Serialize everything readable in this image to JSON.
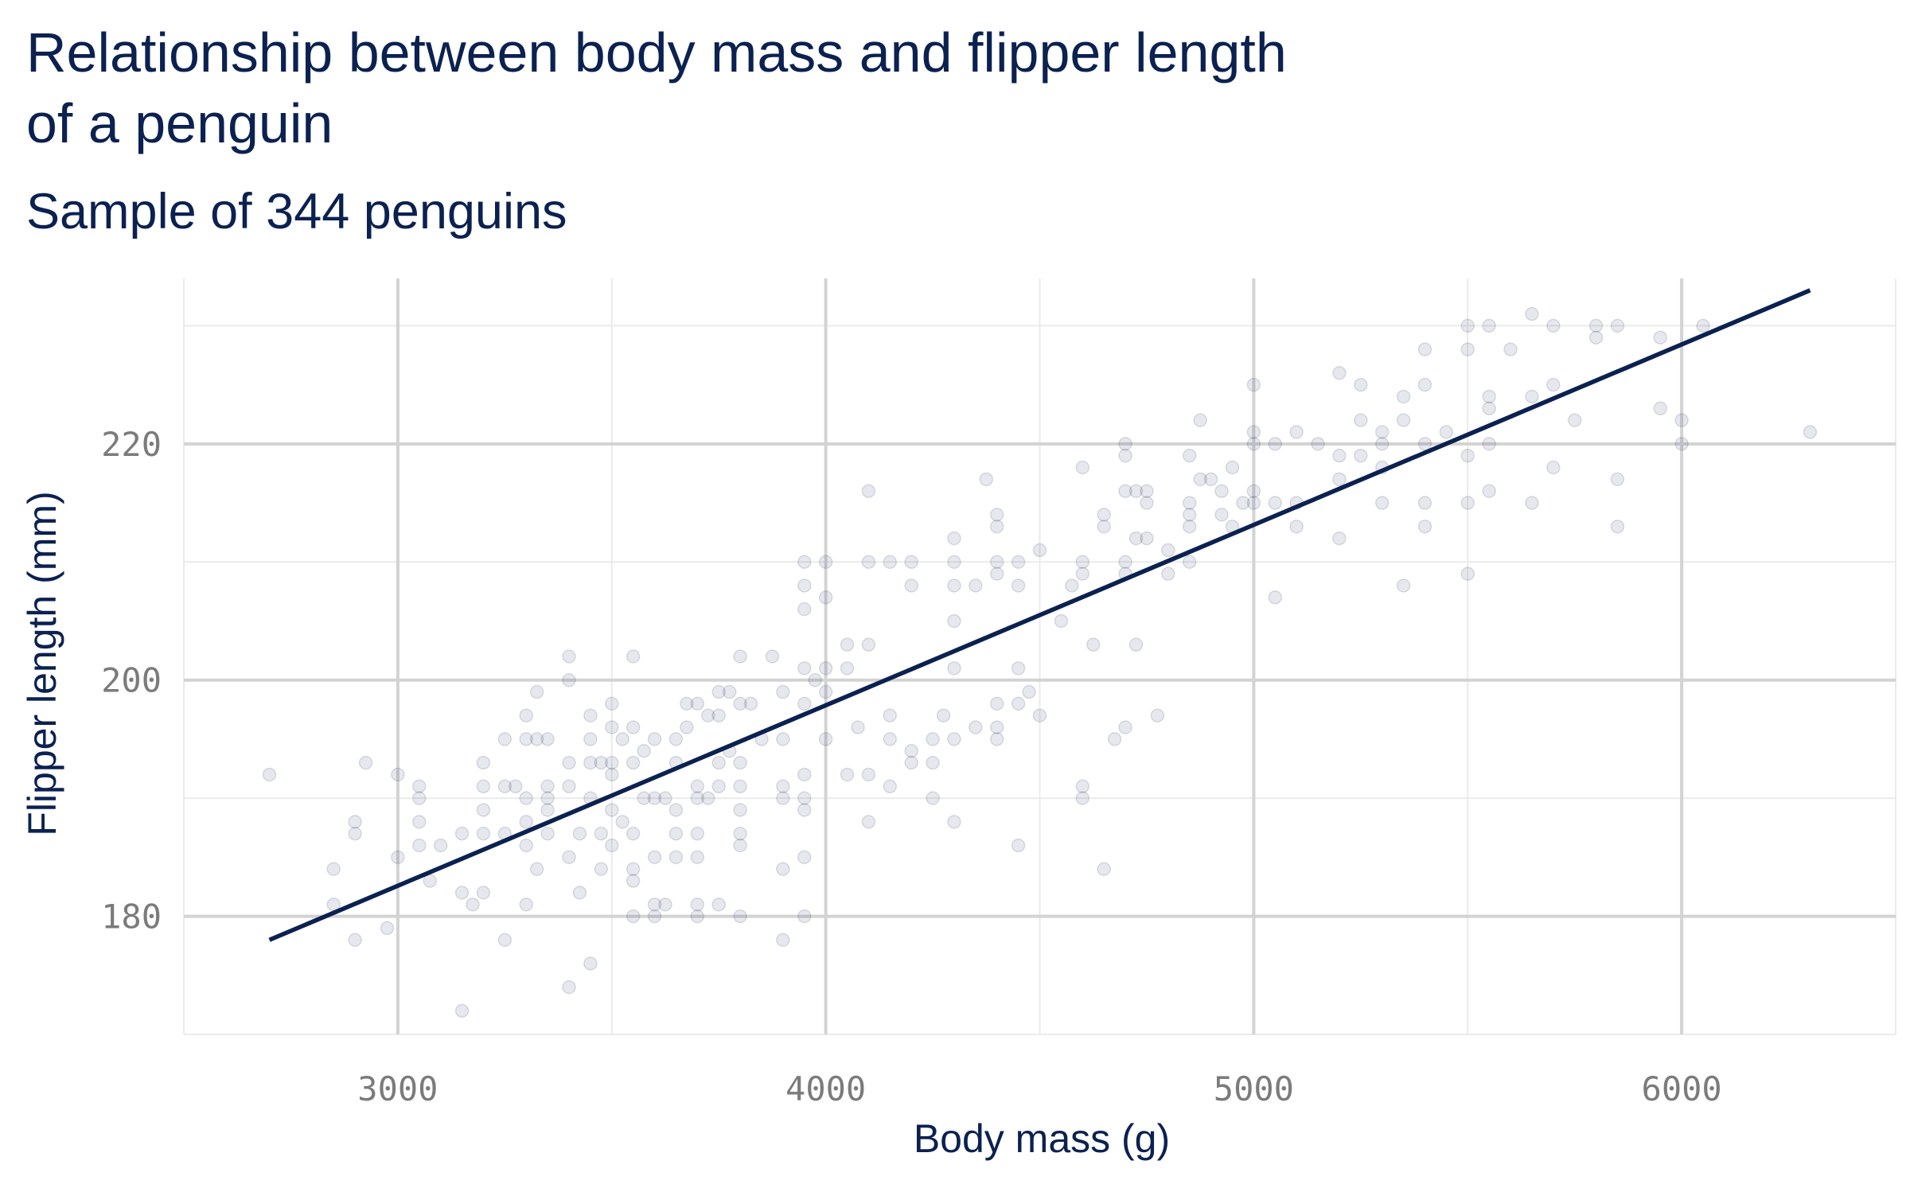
{
  "chart_data": {
    "type": "scatter",
    "title": "Relationship between body mass and flipper length of a penguin",
    "subtitle": "Sample of 344 penguins",
    "xlabel": "Body mass (g)",
    "ylabel": "Flipper length (mm)",
    "xlim": [
      2500,
      6500
    ],
    "ylim": [
      170,
      234
    ],
    "xticks": [
      3000,
      4000,
      5000,
      6000
    ],
    "yticks": [
      180,
      200,
      220
    ],
    "grid": true,
    "legend": "none",
    "colors": {
      "points": "#0b2150",
      "line": "#0b2150",
      "text": "#0b2150",
      "grid": "#d3d3d3",
      "tick_text": "#7b7b7b"
    },
    "trend_line": {
      "x": [
        2700,
        6300
      ],
      "y": [
        178,
        233
      ]
    },
    "points": [
      [
        2700,
        192
      ],
      [
        2850,
        184
      ],
      [
        2850,
        181
      ],
      [
        2900,
        178
      ],
      [
        2900,
        187
      ],
      [
        2900,
        188
      ],
      [
        2925,
        193
      ],
      [
        2975,
        179
      ],
      [
        3000,
        192
      ],
      [
        3000,
        185
      ],
      [
        3050,
        191
      ],
      [
        3050,
        190
      ],
      [
        3050,
        188
      ],
      [
        3050,
        186
      ],
      [
        3075,
        183
      ],
      [
        3100,
        186
      ],
      [
        3150,
        187
      ],
      [
        3150,
        182
      ],
      [
        3150,
        172
      ],
      [
        3175,
        181
      ],
      [
        3200,
        191
      ],
      [
        3200,
        189
      ],
      [
        3200,
        187
      ],
      [
        3200,
        193
      ],
      [
        3200,
        182
      ],
      [
        3250,
        195
      ],
      [
        3250,
        191
      ],
      [
        3250,
        187
      ],
      [
        3250,
        178
      ],
      [
        3275,
        191
      ],
      [
        3300,
        197
      ],
      [
        3300,
        195
      ],
      [
        3300,
        190
      ],
      [
        3300,
        188
      ],
      [
        3300,
        186
      ],
      [
        3300,
        181
      ],
      [
        3325,
        199
      ],
      [
        3325,
        195
      ],
      [
        3325,
        184
      ],
      [
        3350,
        190
      ],
      [
        3350,
        189
      ],
      [
        3350,
        187
      ],
      [
        3350,
        195
      ],
      [
        3350,
        191
      ],
      [
        3400,
        202
      ],
      [
        3400,
        200
      ],
      [
        3400,
        193
      ],
      [
        3400,
        191
      ],
      [
        3400,
        185
      ],
      [
        3400,
        174
      ],
      [
        3425,
        187
      ],
      [
        3425,
        182
      ],
      [
        3450,
        197
      ],
      [
        3450,
        195
      ],
      [
        3450,
        193
      ],
      [
        3450,
        190
      ],
      [
        3450,
        176
      ],
      [
        3475,
        187
      ],
      [
        3475,
        184
      ],
      [
        3475,
        193
      ],
      [
        3500,
        198
      ],
      [
        3500,
        196
      ],
      [
        3500,
        192
      ],
      [
        3500,
        189
      ],
      [
        3500,
        186
      ],
      [
        3500,
        193
      ],
      [
        3525,
        195
      ],
      [
        3525,
        188
      ],
      [
        3550,
        202
      ],
      [
        3550,
        196
      ],
      [
        3550,
        193
      ],
      [
        3550,
        187
      ],
      [
        3550,
        184
      ],
      [
        3550,
        183
      ],
      [
        3550,
        180
      ],
      [
        3575,
        194
      ],
      [
        3575,
        190
      ],
      [
        3600,
        195
      ],
      [
        3600,
        190
      ],
      [
        3600,
        185
      ],
      [
        3600,
        181
      ],
      [
        3600,
        180
      ],
      [
        3625,
        190
      ],
      [
        3625,
        181
      ],
      [
        3650,
        195
      ],
      [
        3650,
        193
      ],
      [
        3650,
        189
      ],
      [
        3650,
        187
      ],
      [
        3650,
        185
      ],
      [
        3675,
        198
      ],
      [
        3675,
        196
      ],
      [
        3700,
        198
      ],
      [
        3700,
        191
      ],
      [
        3700,
        190
      ],
      [
        3700,
        187
      ],
      [
        3700,
        185
      ],
      [
        3700,
        181
      ],
      [
        3700,
        180
      ],
      [
        3725,
        190
      ],
      [
        3725,
        197
      ],
      [
        3750,
        199
      ],
      [
        3750,
        197
      ],
      [
        3750,
        193
      ],
      [
        3750,
        191
      ],
      [
        3750,
        181
      ],
      [
        3775,
        199
      ],
      [
        3775,
        194
      ],
      [
        3800,
        202
      ],
      [
        3800,
        198
      ],
      [
        3800,
        193
      ],
      [
        3800,
        191
      ],
      [
        3800,
        189
      ],
      [
        3800,
        187
      ],
      [
        3800,
        186
      ],
      [
        3800,
        180
      ],
      [
        3825,
        198
      ],
      [
        3850,
        195
      ],
      [
        3875,
        202
      ],
      [
        3900,
        199
      ],
      [
        3900,
        195
      ],
      [
        3900,
        191
      ],
      [
        3900,
        190
      ],
      [
        3900,
        184
      ],
      [
        3900,
        178
      ],
      [
        3950,
        210
      ],
      [
        3950,
        208
      ],
      [
        3950,
        206
      ],
      [
        3950,
        201
      ],
      [
        3950,
        198
      ],
      [
        3950,
        192
      ],
      [
        3950,
        190
      ],
      [
        3950,
        189
      ],
      [
        3950,
        185
      ],
      [
        3950,
        180
      ],
      [
        3975,
        200
      ],
      [
        4000,
        210
      ],
      [
        4000,
        207
      ],
      [
        4000,
        201
      ],
      [
        4000,
        199
      ],
      [
        4000,
        195
      ],
      [
        4050,
        203
      ],
      [
        4050,
        201
      ],
      [
        4050,
        192
      ],
      [
        4075,
        196
      ],
      [
        4100,
        216
      ],
      [
        4100,
        210
      ],
      [
        4100,
        203
      ],
      [
        4100,
        192
      ],
      [
        4100,
        188
      ],
      [
        4150,
        210
      ],
      [
        4150,
        197
      ],
      [
        4150,
        195
      ],
      [
        4150,
        191
      ],
      [
        4200,
        210
      ],
      [
        4200,
        208
      ],
      [
        4200,
        194
      ],
      [
        4200,
        193
      ],
      [
        4250,
        190
      ],
      [
        4250,
        193
      ],
      [
        4250,
        195
      ],
      [
        4275,
        197
      ],
      [
        4300,
        212
      ],
      [
        4300,
        210
      ],
      [
        4300,
        208
      ],
      [
        4300,
        205
      ],
      [
        4300,
        201
      ],
      [
        4300,
        195
      ],
      [
        4300,
        188
      ],
      [
        4350,
        208
      ],
      [
        4350,
        196
      ],
      [
        4375,
        217
      ],
      [
        4400,
        214
      ],
      [
        4400,
        213
      ],
      [
        4400,
        210
      ],
      [
        4400,
        209
      ],
      [
        4400,
        198
      ],
      [
        4400,
        196
      ],
      [
        4400,
        195
      ],
      [
        4450,
        210
      ],
      [
        4450,
        208
      ],
      [
        4450,
        201
      ],
      [
        4450,
        198
      ],
      [
        4450,
        186
      ],
      [
        4475,
        199
      ],
      [
        4500,
        211
      ],
      [
        4500,
        197
      ],
      [
        4550,
        205
      ],
      [
        4575,
        208
      ],
      [
        4600,
        218
      ],
      [
        4600,
        210
      ],
      [
        4600,
        209
      ],
      [
        4600,
        191
      ],
      [
        4600,
        190
      ],
      [
        4625,
        203
      ],
      [
        4650,
        214
      ],
      [
        4650,
        213
      ],
      [
        4650,
        184
      ],
      [
        4675,
        195
      ],
      [
        4700,
        220
      ],
      [
        4700,
        219
      ],
      [
        4700,
        216
      ],
      [
        4700,
        210
      ],
      [
        4700,
        209
      ],
      [
        4700,
        196
      ],
      [
        4725,
        216
      ],
      [
        4725,
        212
      ],
      [
        4725,
        203
      ],
      [
        4750,
        216
      ],
      [
        4750,
        215
      ],
      [
        4750,
        212
      ],
      [
        4775,
        197
      ],
      [
        4800,
        211
      ],
      [
        4800,
        209
      ],
      [
        4850,
        219
      ],
      [
        4850,
        215
      ],
      [
        4850,
        214
      ],
      [
        4850,
        213
      ],
      [
        4850,
        210
      ],
      [
        4875,
        222
      ],
      [
        4875,
        217
      ],
      [
        4900,
        217
      ],
      [
        4925,
        216
      ],
      [
        4925,
        214
      ],
      [
        4950,
        218
      ],
      [
        4950,
        213
      ],
      [
        4975,
        215
      ],
      [
        5000,
        225
      ],
      [
        5000,
        221
      ],
      [
        5000,
        220
      ],
      [
        5000,
        216
      ],
      [
        5000,
        215
      ],
      [
        5050,
        220
      ],
      [
        5050,
        215
      ],
      [
        5050,
        207
      ],
      [
        5100,
        221
      ],
      [
        5100,
        215
      ],
      [
        5100,
        213
      ],
      [
        5150,
        220
      ],
      [
        5200,
        226
      ],
      [
        5200,
        219
      ],
      [
        5200,
        217
      ],
      [
        5200,
        212
      ],
      [
        5250,
        225
      ],
      [
        5250,
        222
      ],
      [
        5250,
        219
      ],
      [
        5300,
        221
      ],
      [
        5300,
        220
      ],
      [
        5300,
        218
      ],
      [
        5300,
        215
      ],
      [
        5350,
        224
      ],
      [
        5350,
        222
      ],
      [
        5350,
        208
      ],
      [
        5400,
        228
      ],
      [
        5400,
        225
      ],
      [
        5400,
        220
      ],
      [
        5400,
        215
      ],
      [
        5400,
        213
      ],
      [
        5450,
        221
      ],
      [
        5500,
        230
      ],
      [
        5500,
        228
      ],
      [
        5500,
        219
      ],
      [
        5500,
        215
      ],
      [
        5500,
        209
      ],
      [
        5550,
        230
      ],
      [
        5550,
        224
      ],
      [
        5550,
        223
      ],
      [
        5550,
        220
      ],
      [
        5550,
        216
      ],
      [
        5600,
        228
      ],
      [
        5650,
        231
      ],
      [
        5650,
        224
      ],
      [
        5650,
        215
      ],
      [
        5700,
        230
      ],
      [
        5700,
        225
      ],
      [
        5700,
        218
      ],
      [
        5750,
        222
      ],
      [
        5800,
        230
      ],
      [
        5800,
        229
      ],
      [
        5850,
        230
      ],
      [
        5850,
        217
      ],
      [
        5850,
        213
      ],
      [
        5950,
        229
      ],
      [
        5950,
        223
      ],
      [
        6000,
        222
      ],
      [
        6000,
        220
      ],
      [
        6050,
        230
      ],
      [
        6300,
        221
      ]
    ]
  }
}
